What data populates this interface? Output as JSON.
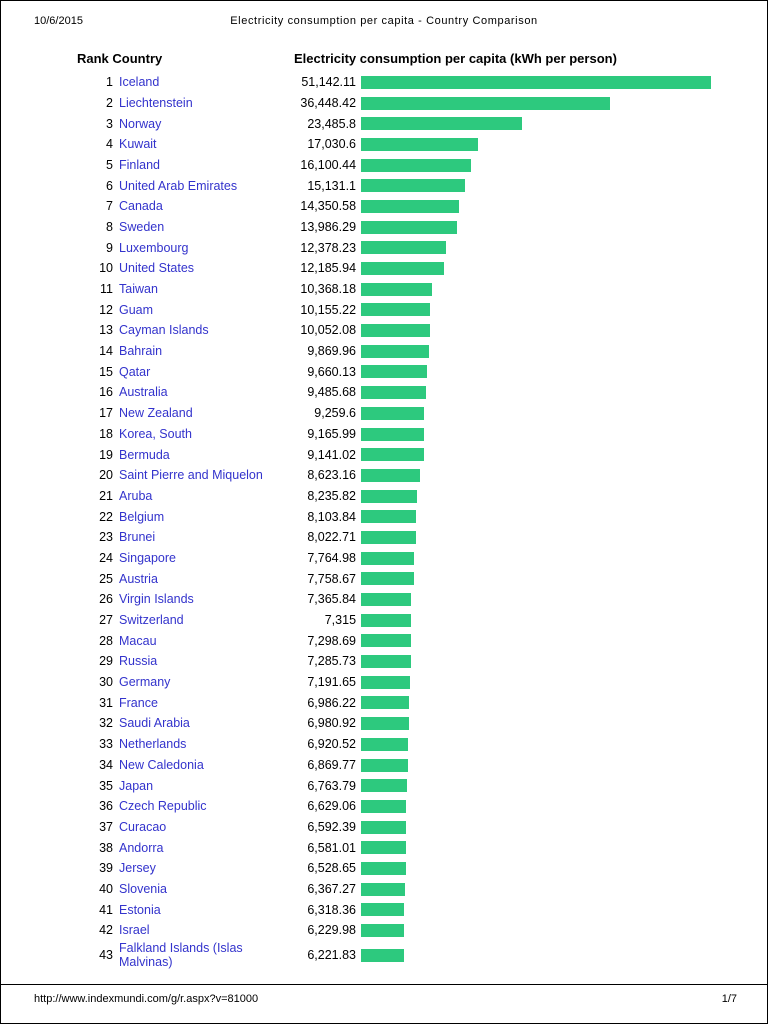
{
  "page": {
    "date": "10/6/2015",
    "title": "Electricity consumption per capita - Country Comparison",
    "footer_url": "http://www.indexmundi.com/g/r.aspx?v=81000",
    "footer_page": "1/7"
  },
  "table": {
    "rank_country_header": "Rank Country",
    "value_header": "Electricity consumption per capita (kWh per person)"
  },
  "colors": {
    "bar_green": "#2DC97E",
    "country_link_blue": "#3333CC"
  },
  "chart_data": {
    "type": "bar",
    "orientation": "horizontal",
    "title": "Electricity consumption per capita (kWh per person)",
    "xlabel": "kWh per person",
    "ylabel": "Country",
    "max_value": 51142.11,
    "bar_color": "#2DC97E",
    "rows": [
      {
        "rank": 1,
        "country": "Iceland",
        "value": 51142.11,
        "label": "51,142.11"
      },
      {
        "rank": 2,
        "country": "Liechtenstein",
        "value": 36448.42,
        "label": "36,448.42"
      },
      {
        "rank": 3,
        "country": "Norway",
        "value": 23485.8,
        "label": "23,485.8"
      },
      {
        "rank": 4,
        "country": "Kuwait",
        "value": 17030.6,
        "label": "17,030.6"
      },
      {
        "rank": 5,
        "country": "Finland",
        "value": 16100.44,
        "label": "16,100.44"
      },
      {
        "rank": 6,
        "country": "United Arab Emirates",
        "value": 15131.1,
        "label": "15,131.1"
      },
      {
        "rank": 7,
        "country": "Canada",
        "value": 14350.58,
        "label": "14,350.58"
      },
      {
        "rank": 8,
        "country": "Sweden",
        "value": 13986.29,
        "label": "13,986.29"
      },
      {
        "rank": 9,
        "country": "Luxembourg",
        "value": 12378.23,
        "label": "12,378.23"
      },
      {
        "rank": 10,
        "country": "United States",
        "value": 12185.94,
        "label": "12,185.94"
      },
      {
        "rank": 11,
        "country": "Taiwan",
        "value": 10368.18,
        "label": "10,368.18"
      },
      {
        "rank": 12,
        "country": "Guam",
        "value": 10155.22,
        "label": "10,155.22"
      },
      {
        "rank": 13,
        "country": "Cayman Islands",
        "value": 10052.08,
        "label": "10,052.08"
      },
      {
        "rank": 14,
        "country": "Bahrain",
        "value": 9869.96,
        "label": "9,869.96"
      },
      {
        "rank": 15,
        "country": "Qatar",
        "value": 9660.13,
        "label": "9,660.13"
      },
      {
        "rank": 16,
        "country": "Australia",
        "value": 9485.68,
        "label": "9,485.68"
      },
      {
        "rank": 17,
        "country": "New Zealand",
        "value": 9259.6,
        "label": "9,259.6"
      },
      {
        "rank": 18,
        "country": "Korea, South",
        "value": 9165.99,
        "label": "9,165.99"
      },
      {
        "rank": 19,
        "country": "Bermuda",
        "value": 9141.02,
        "label": "9,141.02"
      },
      {
        "rank": 20,
        "country": "Saint Pierre and Miquelon",
        "value": 8623.16,
        "label": "8,623.16"
      },
      {
        "rank": 21,
        "country": "Aruba",
        "value": 8235.82,
        "label": "8,235.82"
      },
      {
        "rank": 22,
        "country": "Belgium",
        "value": 8103.84,
        "label": "8,103.84"
      },
      {
        "rank": 23,
        "country": "Brunei",
        "value": 8022.71,
        "label": "8,022.71"
      },
      {
        "rank": 24,
        "country": "Singapore",
        "value": 7764.98,
        "label": "7,764.98"
      },
      {
        "rank": 25,
        "country": "Austria",
        "value": 7758.67,
        "label": "7,758.67"
      },
      {
        "rank": 26,
        "country": "Virgin Islands",
        "value": 7365.84,
        "label": "7,365.84"
      },
      {
        "rank": 27,
        "country": "Switzerland",
        "value": 7315,
        "label": "7,315"
      },
      {
        "rank": 28,
        "country": "Macau",
        "value": 7298.69,
        "label": "7,298.69"
      },
      {
        "rank": 29,
        "country": "Russia",
        "value": 7285.73,
        "label": "7,285.73"
      },
      {
        "rank": 30,
        "country": "Germany",
        "value": 7191.65,
        "label": "7,191.65"
      },
      {
        "rank": 31,
        "country": "France",
        "value": 6986.22,
        "label": "6,986.22"
      },
      {
        "rank": 32,
        "country": "Saudi Arabia",
        "value": 6980.92,
        "label": "6,980.92"
      },
      {
        "rank": 33,
        "country": "Netherlands",
        "value": 6920.52,
        "label": "6,920.52"
      },
      {
        "rank": 34,
        "country": "New Caledonia",
        "value": 6869.77,
        "label": "6,869.77"
      },
      {
        "rank": 35,
        "country": "Japan",
        "value": 6763.79,
        "label": "6,763.79"
      },
      {
        "rank": 36,
        "country": "Czech Republic",
        "value": 6629.06,
        "label": "6,629.06"
      },
      {
        "rank": 37,
        "country": "Curacao",
        "value": 6592.39,
        "label": "6,592.39"
      },
      {
        "rank": 38,
        "country": "Andorra",
        "value": 6581.01,
        "label": "6,581.01"
      },
      {
        "rank": 39,
        "country": "Jersey",
        "value": 6528.65,
        "label": "6,528.65"
      },
      {
        "rank": 40,
        "country": "Slovenia",
        "value": 6367.27,
        "label": "6,367.27"
      },
      {
        "rank": 41,
        "country": "Estonia",
        "value": 6318.36,
        "label": "6,318.36"
      },
      {
        "rank": 42,
        "country": "Israel",
        "value": 6229.98,
        "label": "6,229.98"
      },
      {
        "rank": 43,
        "country": "Falkland Islands (Islas Malvinas)",
        "value": 6221.83,
        "label": "6,221.83"
      }
    ]
  }
}
